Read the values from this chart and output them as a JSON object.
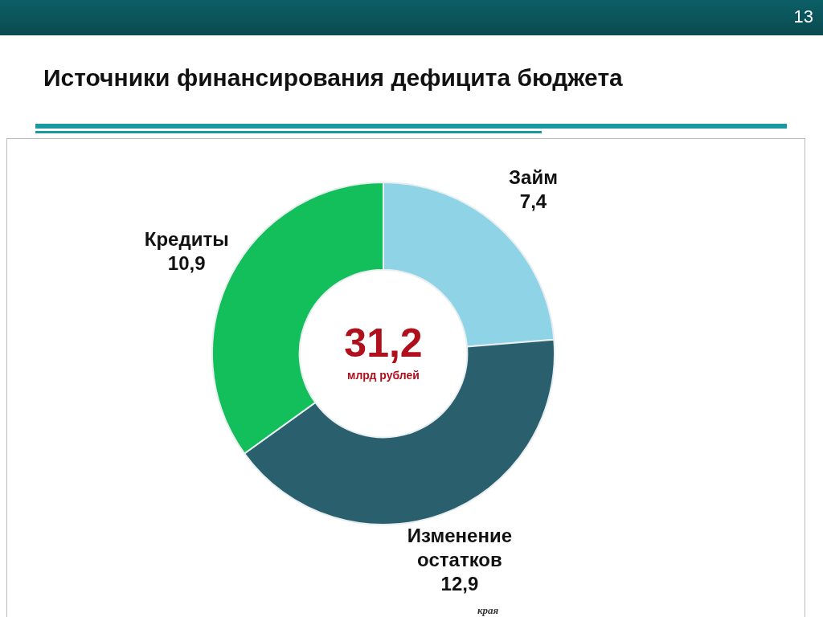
{
  "chart_data": {
    "type": "donut",
    "title": "Источники финансирования дефицита бюджета",
    "categories": [
      "Займ",
      "Изменение остатков",
      "Кредиты"
    ],
    "values": [
      7.4,
      12.9,
      10.9
    ],
    "colors": [
      "#8fd3e6",
      "#2a5f6e",
      "#12bf5a"
    ],
    "value_labels": [
      "7,4",
      "12,9",
      "10,9"
    ],
    "legend": false,
    "annotations": [
      "31,2",
      "млрд рублей",
      "13",
      "края"
    ]
  }
}
